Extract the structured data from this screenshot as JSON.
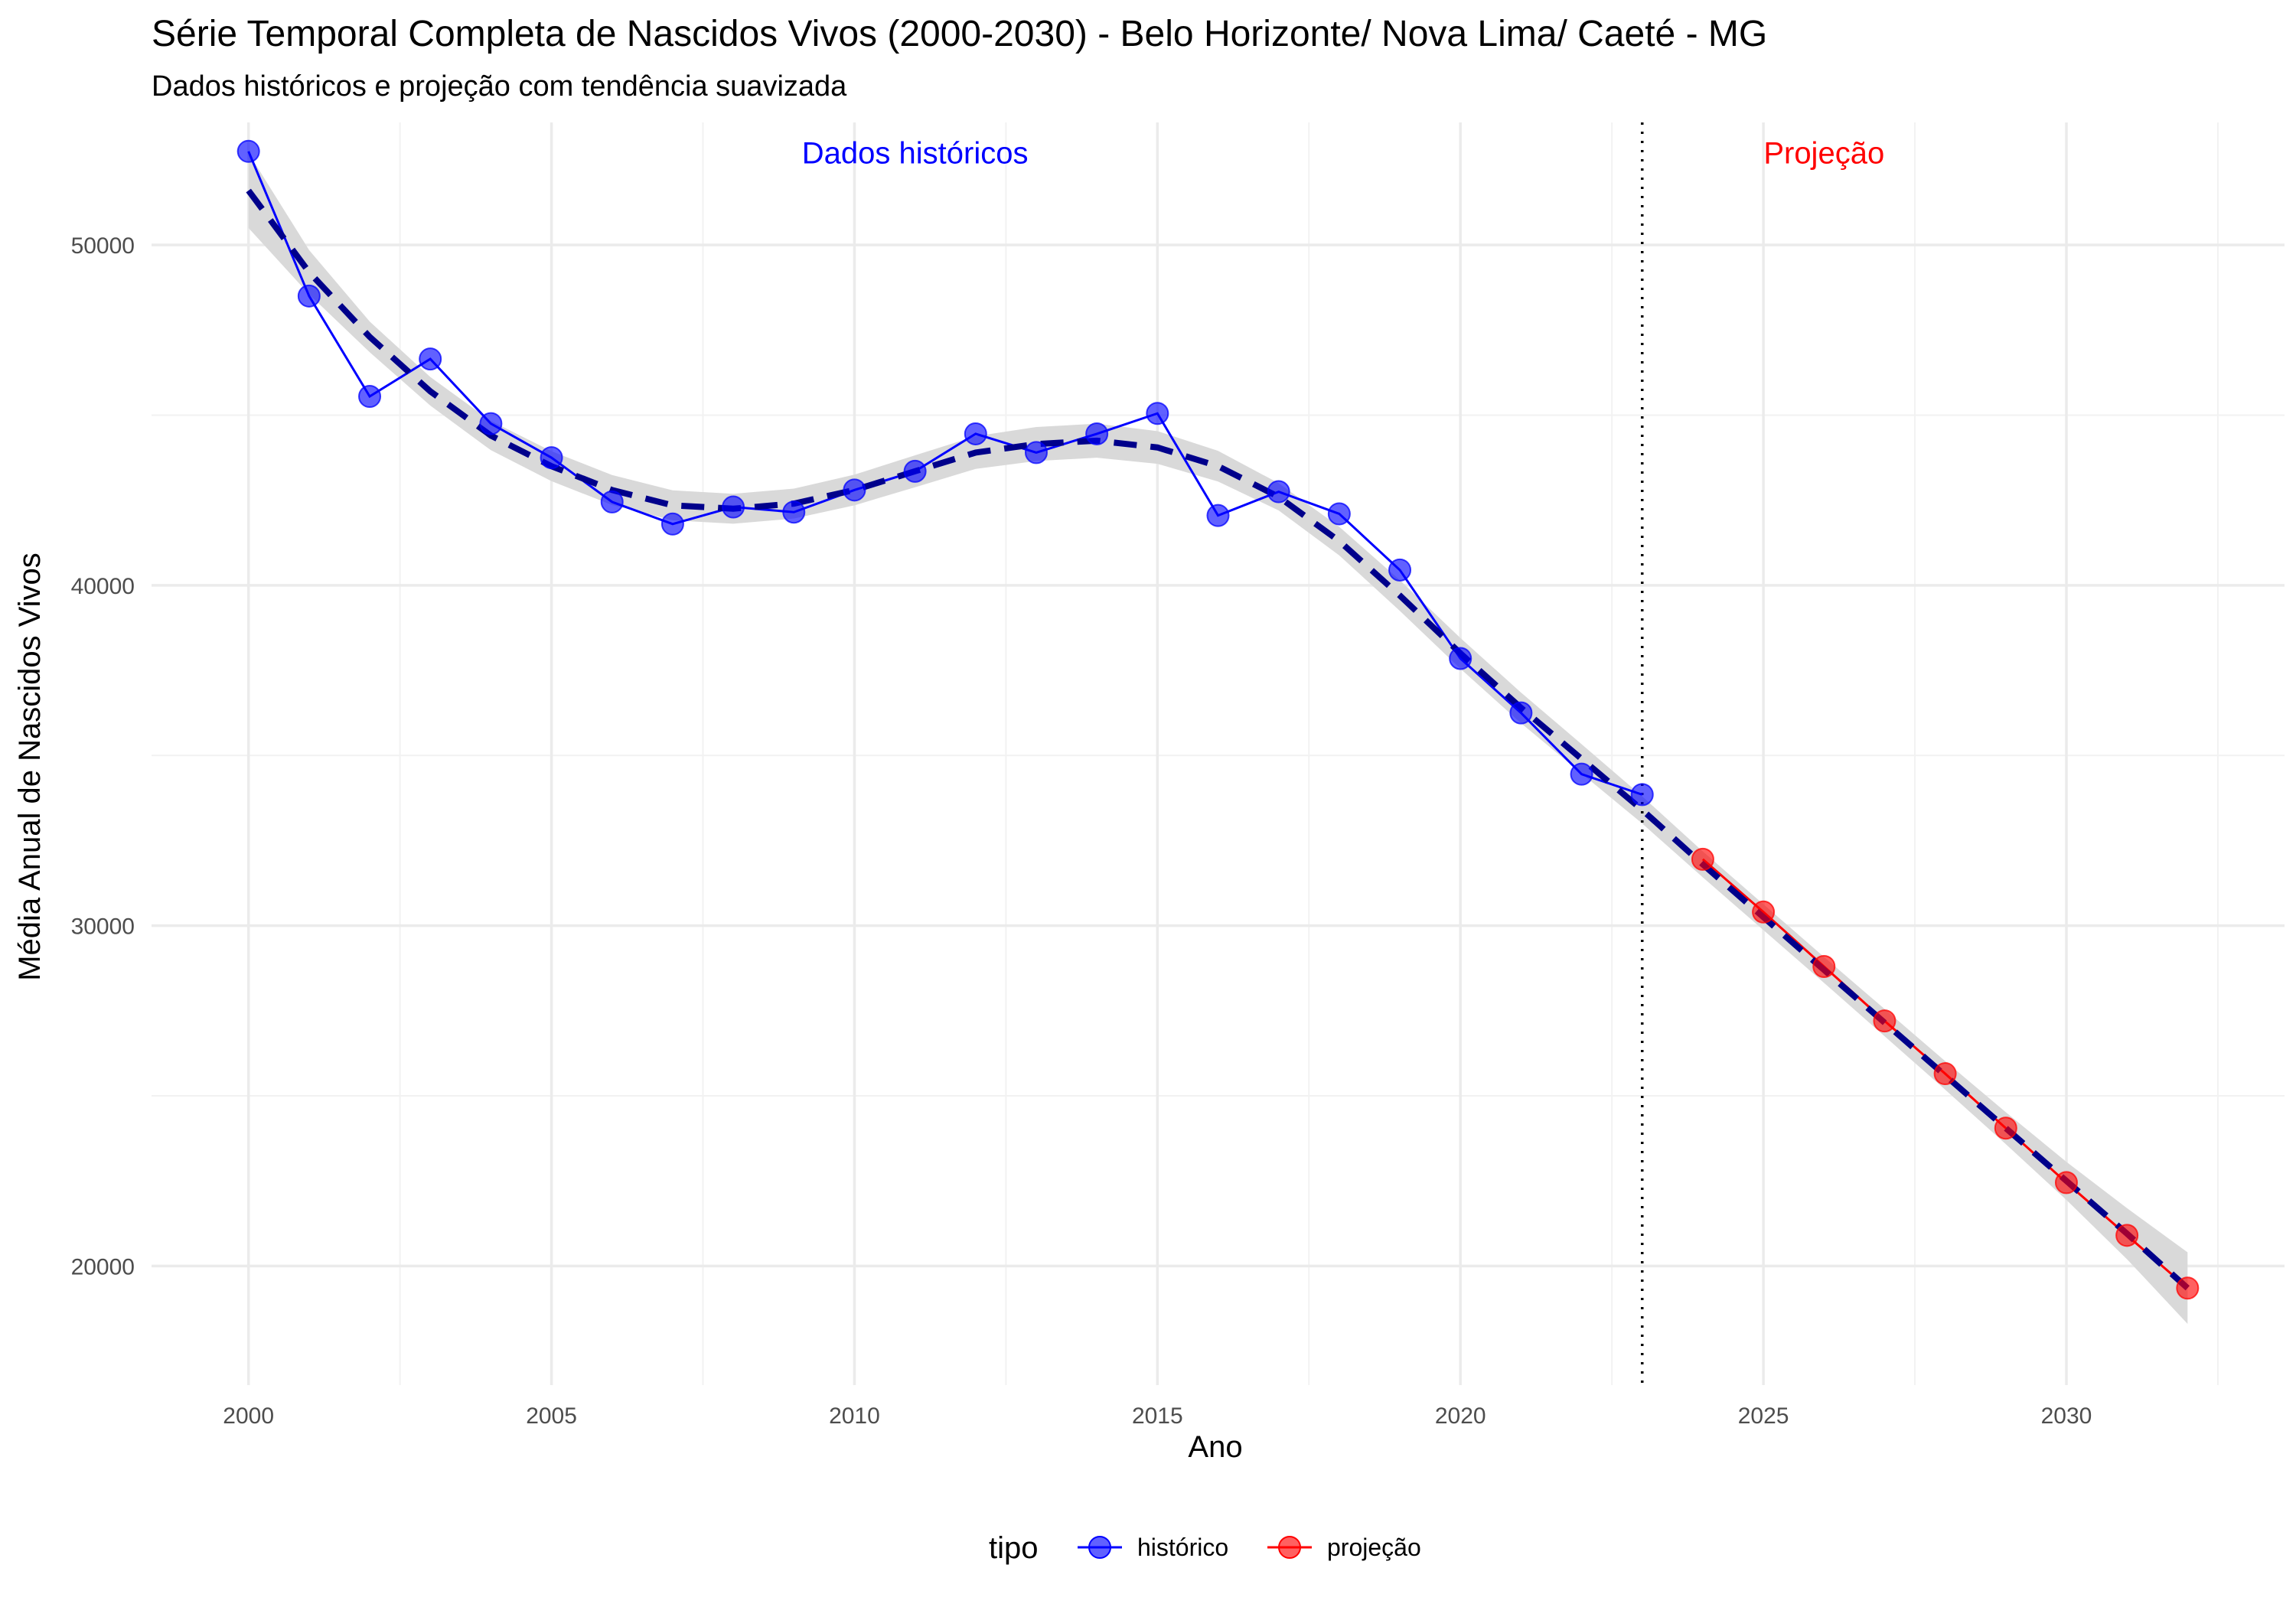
{
  "chart_data": {
    "type": "line",
    "title": "Série Temporal Completa de Nascidos Vivos (2000-2030) -  Belo Horizonte/ Nova Lima/ Caeté - MG",
    "subtitle": "Dados históricos e projeção com tendência suavizada",
    "xlabel": "Ano",
    "ylabel": "Média Anual de Nascidos Vivos",
    "xlim": [
      1998.4,
      2033.6
    ],
    "ylim": [
      16500,
      53600
    ],
    "x_ticks": [
      2000,
      2005,
      2010,
      2015,
      2020,
      2025,
      2030
    ],
    "y_ticks": [
      20000,
      30000,
      40000,
      50000
    ],
    "grid": true,
    "legend_position": "bottom",
    "legend_title": "tipo",
    "series": [
      {
        "name": "histórico",
        "color": "#0000ff",
        "x": [
          2000,
          2001,
          2002,
          2003,
          2004,
          2005,
          2006,
          2007,
          2008,
          2009,
          2010,
          2011,
          2012,
          2013,
          2014,
          2015,
          2016,
          2017,
          2018,
          2019,
          2020,
          2021,
          2022,
          2023
        ],
        "y": [
          52750,
          48500,
          45550,
          46650,
          44750,
          43750,
          42450,
          41800,
          42300,
          42150,
          42800,
          43350,
          44450,
          43900,
          44450,
          45050,
          42050,
          42750,
          42100,
          40450,
          37850,
          36250,
          34450,
          33850
        ]
      },
      {
        "name": "projeção",
        "color": "#ff0000",
        "x": [
          2024,
          2025,
          2026,
          2027,
          2028,
          2029,
          2030,
          2031,
          2032
        ],
        "y": [
          31950,
          30400,
          28800,
          27200,
          25650,
          24050,
          22450,
          20900,
          19350
        ]
      }
    ],
    "trend": {
      "color": "#00008b",
      "style": "dashed",
      "band_color": "#d9d9d9",
      "x": [
        2000,
        2001,
        2002,
        2003,
        2004,
        2005,
        2006,
        2007,
        2008,
        2009,
        2010,
        2011,
        2012,
        2013,
        2014,
        2015,
        2016,
        2017,
        2018,
        2019,
        2020,
        2021,
        2022,
        2023,
        2024,
        2025,
        2026,
        2027,
        2028,
        2029,
        2030,
        2031,
        2032
      ],
      "y": [
        51600,
        49200,
        47300,
        45700,
        44400,
        43500,
        42800,
        42350,
        42250,
        42400,
        42800,
        43350,
        43900,
        44150,
        44250,
        44050,
        43500,
        42600,
        41300,
        39700,
        38000,
        36400,
        34900,
        33400,
        31800,
        30250,
        28700,
        27150,
        25600,
        24050,
        22500,
        20950,
        19350
      ],
      "band_halfwidth": [
        1100,
        650,
        450,
        420,
        430,
        440,
        440,
        440,
        440,
        440,
        450,
        470,
        480,
        500,
        500,
        480,
        450,
        400,
        420,
        450,
        450,
        450,
        430,
        400,
        380,
        380,
        380,
        400,
        420,
        470,
        560,
        750,
        1050
      ]
    },
    "cutoff_line": {
      "x": 2023,
      "style": "dotted",
      "color": "#000000"
    },
    "annotations": [
      {
        "text": "Dados históricos",
        "x": 2011,
        "y": 52400,
        "color": "#0000ff"
      },
      {
        "text": "Projeção",
        "x": 2026,
        "y": 52400,
        "color": "#ff0000"
      }
    ]
  }
}
